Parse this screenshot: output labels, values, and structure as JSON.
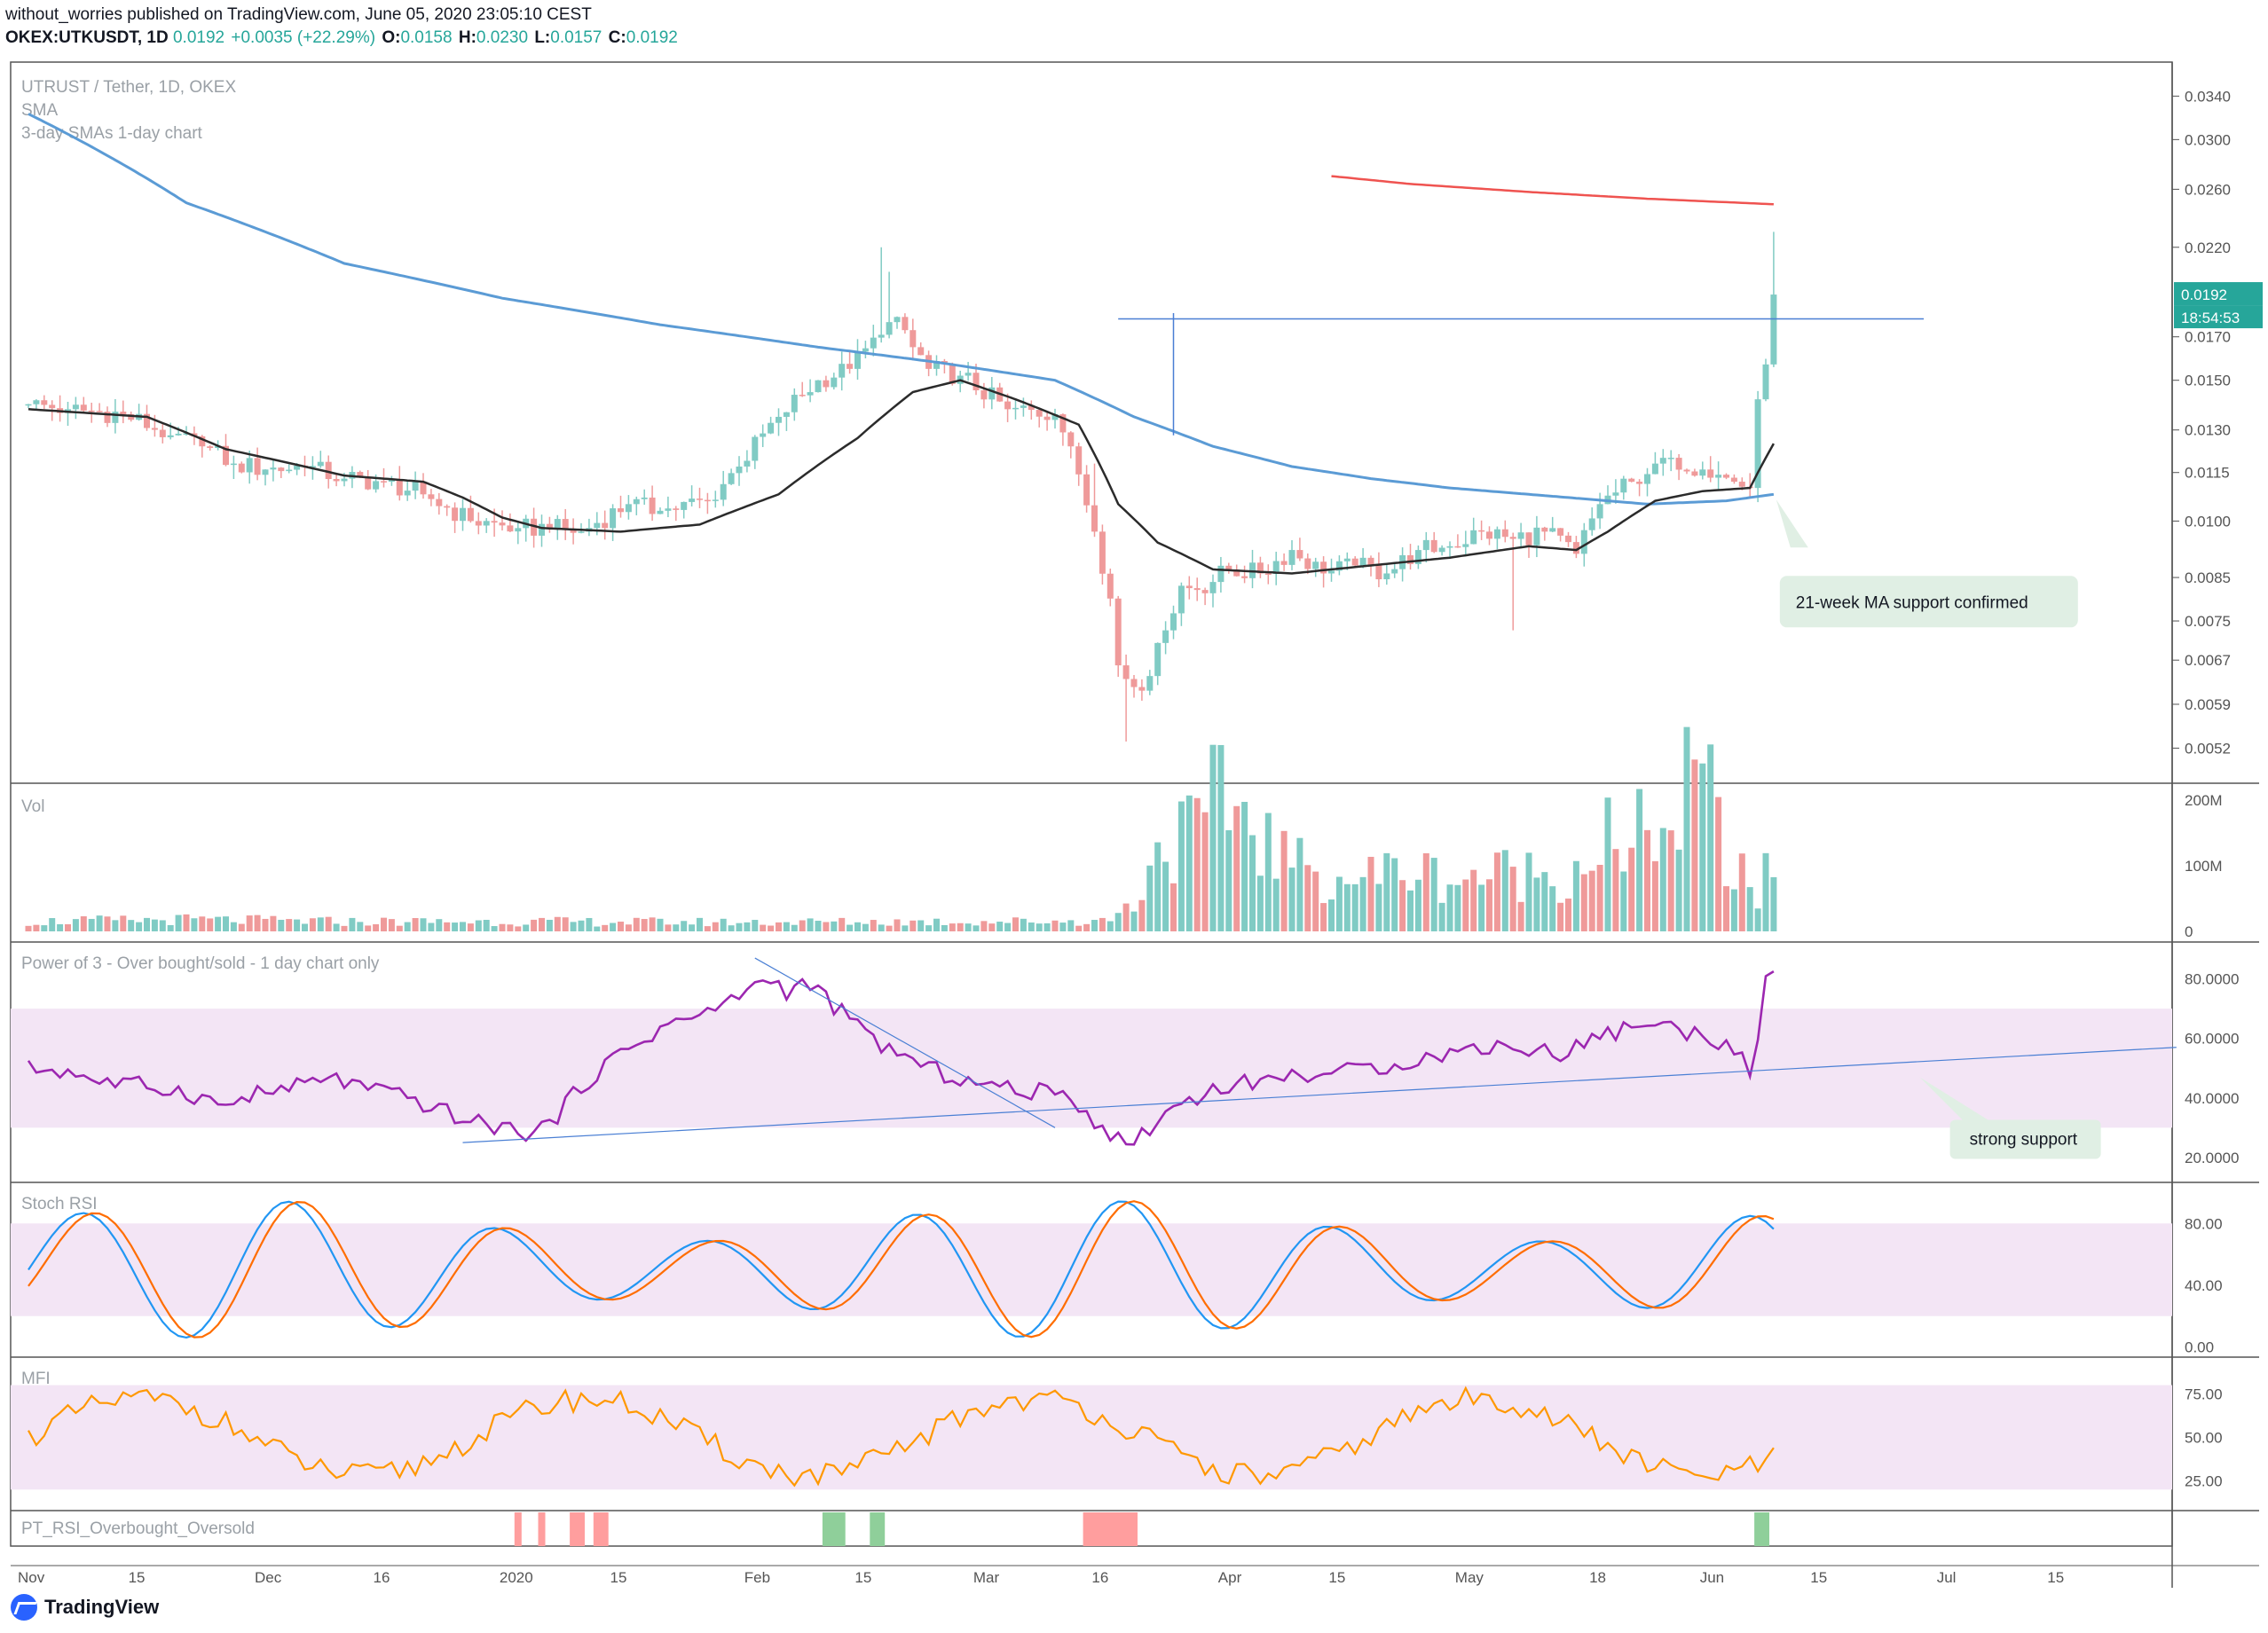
{
  "header": {
    "published": "without_worries published on TradingView.com, June 05, 2020 23:05:10 CEST",
    "symbol": "OKEX:UTKUSDT, 1D",
    "last": "0.0192",
    "change": "+0.0035 (+22.29%)",
    "o_label": "O:",
    "o": "0.0158",
    "h_label": "H:",
    "h": "0.0230",
    "l_label": "L:",
    "l": "0.0157",
    "c_label": "C:",
    "c": "0.0192"
  },
  "brand": {
    "name": "TradingView"
  },
  "colors": {
    "up": "#80cbc4",
    "down": "#ef9a9a",
    "sma_short": "#2b2b2b",
    "sma_long": "#5b9bd5",
    "sma_red": "#ef5350",
    "rsi": "#9c27b0",
    "stoch_k": "#2196f3",
    "stoch_d": "#ff6d00",
    "mfi": "#ff9800",
    "band": "#f3e5f5",
    "note_bg": "#e0efe4"
  },
  "chart_data": [
    {
      "type": "candlestick",
      "title": "UTRUST / Tether, 1D, OKEX",
      "subtitle": "SMA",
      "subtitle2": "3-day SMAs 1-day chart",
      "yscale": "log",
      "ylim": [
        0.0047,
        0.0375
      ],
      "y_ticks": [
        "0.0340",
        "0.0300",
        "0.0260",
        "0.0220",
        "0.0170",
        "0.0150",
        "0.0130",
        "0.0115",
        "0.0100",
        "0.0085",
        "0.0075",
        "0.0067",
        "0.0059",
        "0.0052"
      ],
      "y_tick_values": [
        0.034,
        0.03,
        0.026,
        0.022,
        0.017,
        0.015,
        0.013,
        0.0115,
        0.01,
        0.0085,
        0.0075,
        0.0067,
        0.0059,
        0.0052
      ],
      "x_ticks": [
        "Nov",
        "15",
        "Dec",
        "16",
        "2020",
        "15",
        "Feb",
        "15",
        "Mar",
        "16",
        "Apr",
        "15",
        "May",
        "18",
        "Jun",
        "15",
        "Jul",
        "15"
      ],
      "x_tick_days": [
        0,
        14,
        30,
        45,
        61,
        75,
        92,
        106,
        121,
        136,
        152,
        166,
        182,
        199,
        213,
        227,
        243,
        257
      ],
      "start_date": "2019-10-26",
      "close_anchors": [
        [
          0,
          0.014
        ],
        [
          5,
          0.0138
        ],
        [
          12,
          0.0136
        ],
        [
          18,
          0.0128
        ],
        [
          22,
          0.0124
        ],
        [
          26,
          0.0118
        ],
        [
          30,
          0.0116
        ],
        [
          35,
          0.0117
        ],
        [
          40,
          0.0113
        ],
        [
          45,
          0.0112
        ],
        [
          50,
          0.0108
        ],
        [
          56,
          0.01
        ],
        [
          62,
          0.0098
        ],
        [
          66,
          0.0098
        ],
        [
          70,
          0.0097
        ],
        [
          76,
          0.0105
        ],
        [
          80,
          0.0103
        ],
        [
          86,
          0.0106
        ],
        [
          90,
          0.0117
        ],
        [
          95,
          0.0135
        ],
        [
          100,
          0.015
        ],
        [
          104,
          0.0155
        ],
        [
          108,
          0.0171
        ],
        [
          110,
          0.018
        ],
        [
          112,
          0.0165
        ],
        [
          114,
          0.0155
        ],
        [
          118,
          0.0152
        ],
        [
          124,
          0.0138
        ],
        [
          130,
          0.0136
        ],
        [
          132,
          0.0124
        ],
        [
          135,
          0.0097
        ],
        [
          137,
          0.008
        ],
        [
          138,
          0.0066
        ],
        [
          140,
          0.0062
        ],
        [
          142,
          0.0064
        ],
        [
          144,
          0.0073
        ],
        [
          146,
          0.0083
        ],
        [
          148,
          0.0082
        ],
        [
          152,
          0.0087
        ],
        [
          156,
          0.0086
        ],
        [
          160,
          0.0092
        ],
        [
          164,
          0.0086
        ],
        [
          168,
          0.0088
        ],
        [
          172,
          0.0086
        ],
        [
          176,
          0.0092
        ],
        [
          180,
          0.0093
        ],
        [
          184,
          0.0097
        ],
        [
          188,
          0.0095
        ],
        [
          192,
          0.0097
        ],
        [
          196,
          0.0091
        ],
        [
          199,
          0.0105
        ],
        [
          203,
          0.0112
        ],
        [
          206,
          0.0118
        ],
        [
          208,
          0.012
        ],
        [
          212,
          0.0116
        ],
        [
          216,
          0.0112
        ],
        [
          218,
          0.011
        ],
        [
          219,
          0.0142
        ],
        [
          220,
          0.0157
        ],
        [
          221,
          0.0192
        ]
      ],
      "spikes": [
        [
          108,
          0.022
        ],
        [
          109,
          0.0205
        ],
        [
          135,
          0.0118
        ],
        [
          139,
          0.0053
        ],
        [
          221,
          0.023
        ],
        [
          188,
          0.0073
        ]
      ],
      "sma_short": [
        [
          0,
          0.0138
        ],
        [
          15,
          0.0135
        ],
        [
          25,
          0.0123
        ],
        [
          40,
          0.0114
        ],
        [
          50,
          0.0112
        ],
        [
          55,
          0.0107
        ],
        [
          60,
          0.0101
        ],
        [
          65,
          0.0098
        ],
        [
          75,
          0.0097
        ],
        [
          85,
          0.0099
        ],
        [
          95,
          0.0108
        ],
        [
          105,
          0.0127
        ],
        [
          112,
          0.0145
        ],
        [
          118,
          0.015
        ],
        [
          125,
          0.0142
        ],
        [
          133,
          0.0132
        ],
        [
          138,
          0.0105
        ],
        [
          143,
          0.0094
        ],
        [
          150,
          0.0087
        ],
        [
          160,
          0.0086
        ],
        [
          170,
          0.0088
        ],
        [
          180,
          0.009
        ],
        [
          190,
          0.0093
        ],
        [
          196,
          0.0092
        ],
        [
          200,
          0.0097
        ],
        [
          206,
          0.0106
        ],
        [
          212,
          0.0109
        ],
        [
          218,
          0.011
        ],
        [
          221,
          0.0125
        ]
      ],
      "sma_long": [
        [
          0,
          0.0323
        ],
        [
          20,
          0.025
        ],
        [
          40,
          0.021
        ],
        [
          60,
          0.019
        ],
        [
          80,
          0.0176
        ],
        [
          100,
          0.0165
        ],
        [
          115,
          0.0158
        ],
        [
          130,
          0.015
        ],
        [
          140,
          0.0135
        ],
        [
          150,
          0.0124
        ],
        [
          160,
          0.0117
        ],
        [
          170,
          0.0113
        ],
        [
          180,
          0.011
        ],
        [
          195,
          0.0107
        ],
        [
          205,
          0.0105
        ],
        [
          215,
          0.0106
        ],
        [
          221,
          0.0108
        ]
      ],
      "sma_red": [
        [
          165,
          0.027
        ],
        [
          175,
          0.0264
        ],
        [
          190,
          0.0258
        ],
        [
          205,
          0.0253
        ],
        [
          221,
          0.0249
        ]
      ],
      "hline": {
        "value": 0.0179,
        "from_day": 138,
        "to_day": 240
      },
      "vline": {
        "day": 145,
        "low": 0.0128,
        "high": 0.0182
      },
      "last_price": "0.0192",
      "countdown": "18:54:53",
      "note": {
        "text": "21-week MA support confirmed",
        "day": 222,
        "value": 0.0108
      }
    },
    {
      "type": "bar",
      "title": "Vol",
      "y_ticks": [
        "200M",
        "100M",
        "0"
      ],
      "y_tick_values": [
        200,
        100,
        0
      ],
      "ylim": [
        0,
        215
      ],
      "vol_anchors": [
        [
          0,
          15
        ],
        [
          20,
          18
        ],
        [
          40,
          15
        ],
        [
          60,
          15
        ],
        [
          90,
          14
        ],
        [
          120,
          15
        ],
        [
          136,
          16
        ],
        [
          140,
          40
        ],
        [
          142,
          110
        ],
        [
          145,
          140
        ],
        [
          148,
          150
        ],
        [
          150,
          190
        ],
        [
          152,
          200
        ],
        [
          155,
          170
        ],
        [
          158,
          120
        ],
        [
          162,
          90
        ],
        [
          166,
          80
        ],
        [
          170,
          85
        ],
        [
          175,
          95
        ],
        [
          180,
          80
        ],
        [
          185,
          88
        ],
        [
          190,
          90
        ],
        [
          195,
          85
        ],
        [
          198,
          120
        ],
        [
          200,
          150
        ],
        [
          202,
          80
        ],
        [
          205,
          180
        ],
        [
          208,
          140
        ],
        [
          210,
          210
        ],
        [
          212,
          220
        ],
        [
          214,
          180
        ],
        [
          216,
          60
        ],
        [
          218,
          100
        ],
        [
          219,
          40
        ],
        [
          221,
          120
        ]
      ]
    },
    {
      "type": "line",
      "title": "Power of 3 - Over bought/sold - 1 day chart only",
      "ylim": [
        14,
        90
      ],
      "y_ticks": [
        "80.0000",
        "60.0000",
        "40.0000",
        "20.0000"
      ],
      "y_tick_values": [
        80,
        60,
        40,
        20
      ],
      "band": [
        30,
        70
      ],
      "anchors": [
        [
          0,
          50
        ],
        [
          5,
          49
        ],
        [
          10,
          45
        ],
        [
          15,
          44
        ],
        [
          20,
          42
        ],
        [
          25,
          37
        ],
        [
          28,
          41
        ],
        [
          33,
          43
        ],
        [
          38,
          47
        ],
        [
          43,
          43
        ],
        [
          48,
          40
        ],
        [
          52,
          36
        ],
        [
          56,
          32
        ],
        [
          60,
          30
        ],
        [
          64,
          28
        ],
        [
          67,
          34
        ],
        [
          70,
          44
        ],
        [
          74,
          53
        ],
        [
          78,
          60
        ],
        [
          82,
          66
        ],
        [
          86,
          68
        ],
        [
          90,
          75
        ],
        [
          94,
          80
        ],
        [
          96,
          76
        ],
        [
          98,
          78
        ],
        [
          100,
          76
        ],
        [
          104,
          66
        ],
        [
          108,
          58
        ],
        [
          112,
          52
        ],
        [
          116,
          48
        ],
        [
          120,
          45
        ],
        [
          124,
          43
        ],
        [
          128,
          42
        ],
        [
          132,
          41
        ],
        [
          134,
          35
        ],
        [
          137,
          28
        ],
        [
          139,
          24
        ],
        [
          142,
          30
        ],
        [
          145,
          37
        ],
        [
          150,
          43
        ],
        [
          156,
          46
        ],
        [
          162,
          48
        ],
        [
          168,
          49
        ],
        [
          174,
          52
        ],
        [
          180,
          55
        ],
        [
          186,
          58
        ],
        [
          190,
          56
        ],
        [
          194,
          55
        ],
        [
          198,
          60
        ],
        [
          202,
          63
        ],
        [
          206,
          66
        ],
        [
          209,
          62
        ],
        [
          212,
          62
        ],
        [
          215,
          58
        ],
        [
          218,
          50
        ],
        [
          219,
          58
        ],
        [
          220,
          78
        ],
        [
          221,
          84
        ]
      ],
      "trendlines": [
        {
          "d1": 92,
          "v1": 87,
          "d2": 130,
          "v2": 30
        },
        {
          "d1": 55,
          "v1": 25,
          "d2": 272,
          "v2": 57
        }
      ],
      "note": {
        "text": "strong support",
        "day": 244,
        "value": 38
      }
    },
    {
      "type": "line",
      "title": "Stoch RSI",
      "ylim": [
        -2,
        102
      ],
      "y_ticks": [
        "80.00",
        "40.00",
        "0.00"
      ],
      "y_tick_values": [
        80,
        40,
        0
      ],
      "band": [
        20,
        80
      ]
    },
    {
      "type": "line",
      "title": "MFI",
      "ylim": [
        12,
        92
      ],
      "y_ticks": [
        "75.00",
        "50.00",
        "25.00"
      ],
      "y_tick_values": [
        75,
        50,
        25
      ],
      "band": [
        20,
        80
      ]
    },
    {
      "type": "histogram",
      "title": "PT_RSI_Overbought_Oversold",
      "red_spans": [
        [
          62,
          62
        ],
        [
          65,
          65
        ],
        [
          69,
          70
        ],
        [
          72,
          73
        ],
        [
          134,
          140
        ]
      ],
      "green_spans": [
        [
          101,
          103
        ],
        [
          107,
          108
        ],
        [
          219,
          220
        ]
      ]
    }
  ]
}
